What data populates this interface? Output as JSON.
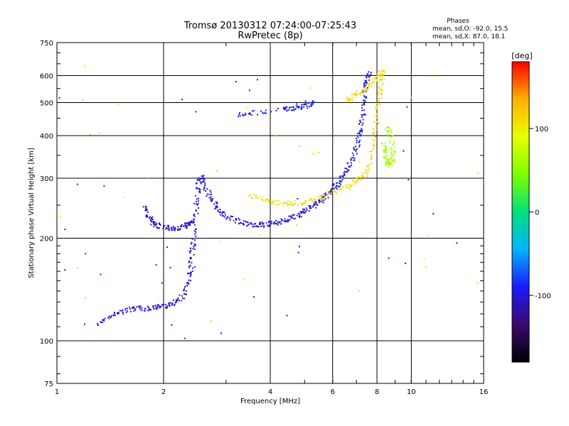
{
  "header": {
    "title_line1": "Tromsø 20130312 07:24:00-07:25:43",
    "title_line2": "RwPretec (8p)"
  },
  "stats": {
    "heading": "Phases",
    "line_o": "mean, sd,O: -92.0, 15.5",
    "line_x": "mean, sd,X:  87.0, 18.1"
  },
  "chart_data": {
    "type": "scatter",
    "xlabel": "Frequency [MHz]",
    "ylabel": "Stationary phase Virtual Height [km]",
    "x_scale": "log",
    "y_scale": "log",
    "xlim": [
      1,
      16
    ],
    "ylim": [
      75,
      750
    ],
    "x_ticks": [
      1,
      2,
      4,
      6,
      8,
      10,
      16
    ],
    "y_ticks": [
      75,
      100,
      200,
      300,
      400,
      500,
      600,
      750
    ],
    "x_grid": [
      2,
      4,
      6,
      8,
      10
    ],
    "y_grid": [
      100,
      200,
      300,
      400,
      500,
      600
    ],
    "grid": true,
    "colorbar": {
      "label": "[deg]",
      "range": [
        -180,
        180
      ],
      "ticks": [
        100,
        0,
        -100
      ],
      "colors": [
        "#000000",
        "#3a0a6e",
        "#1a1aff",
        "#00b4ff",
        "#00e07a",
        "#7cff00",
        "#e8ff00",
        "#ffb000",
        "#ff0000"
      ]
    },
    "series": [
      {
        "label_phase": -100,
        "trace": [
          [
            1.3,
            112
          ],
          [
            1.4,
            118
          ],
          [
            1.5,
            122
          ],
          [
            1.6,
            124
          ],
          [
            1.7,
            125
          ],
          [
            1.8,
            125
          ],
          [
            1.9,
            126
          ],
          [
            2.0,
            127
          ],
          [
            2.1,
            129
          ],
          [
            2.2,
            132
          ],
          [
            2.3,
            140
          ],
          [
            2.35,
            152
          ],
          [
            2.38,
            168
          ],
          [
            2.4,
            185
          ],
          [
            2.42,
            200
          ],
          [
            2.45,
            230
          ],
          [
            2.48,
            265
          ],
          [
            2.5,
            290
          ],
          [
            2.55,
            305
          ],
          [
            2.6,
            285
          ],
          [
            2.7,
            265
          ],
          [
            2.8,
            250
          ],
          [
            2.9,
            240
          ],
          [
            3.0,
            232
          ],
          [
            3.2,
            226
          ],
          [
            3.4,
            222
          ],
          [
            3.6,
            220
          ],
          [
            3.8,
            220
          ],
          [
            4.0,
            222
          ],
          [
            4.2,
            224
          ],
          [
            4.4,
            227
          ],
          [
            4.6,
            230
          ],
          [
            4.8,
            235
          ],
          [
            5.0,
            242
          ],
          [
            5.2,
            248
          ],
          [
            5.4,
            254
          ],
          [
            5.6,
            262
          ],
          [
            5.8,
            270
          ],
          [
            6.0,
            280
          ],
          [
            6.2,
            292
          ],
          [
            6.4,
            306
          ],
          [
            6.6,
            322
          ],
          [
            6.8,
            345
          ],
          [
            7.0,
            375
          ],
          [
            7.1,
            400
          ],
          [
            7.2,
            430
          ],
          [
            7.3,
            470
          ],
          [
            7.35,
            520
          ],
          [
            7.4,
            560
          ],
          [
            7.5,
            590
          ],
          [
            7.6,
            610
          ]
        ]
      },
      {
        "label_phase": -110,
        "trace": [
          [
            1.75,
            250
          ],
          [
            1.8,
            235
          ],
          [
            1.85,
            225
          ],
          [
            1.9,
            220
          ],
          [
            2.0,
            216
          ],
          [
            2.1,
            215
          ],
          [
            2.2,
            216
          ],
          [
            2.3,
            218
          ],
          [
            2.35,
            222
          ],
          [
            2.4,
            225
          ]
        ]
      },
      {
        "label_phase": 110,
        "trace": [
          [
            3.5,
            270
          ],
          [
            3.8,
            262
          ],
          [
            4.0,
            258
          ],
          [
            4.3,
            255
          ],
          [
            4.6,
            254
          ],
          [
            5.0,
            256
          ],
          [
            5.4,
            262
          ],
          [
            5.8,
            270
          ],
          [
            6.2,
            280
          ],
          [
            6.6,
            288
          ],
          [
            7.0,
            295
          ],
          [
            7.3,
            305
          ],
          [
            7.6,
            330
          ],
          [
            7.8,
            380
          ],
          [
            7.9,
            430
          ],
          [
            8.0,
            480
          ],
          [
            8.1,
            530
          ],
          [
            8.2,
            580
          ],
          [
            8.3,
            620
          ],
          [
            8.0,
            600
          ],
          [
            7.7,
            575
          ],
          [
            7.4,
            555
          ],
          [
            7.1,
            535
          ],
          [
            6.8,
            520
          ],
          [
            6.5,
            510
          ]
        ]
      },
      {
        "label_phase": -95,
        "trace": [
          [
            4.3,
            480
          ],
          [
            4.6,
            482
          ],
          [
            4.9,
            488
          ],
          [
            5.1,
            495
          ],
          [
            5.3,
            505
          ],
          [
            4.0,
            470
          ],
          [
            3.5,
            470
          ],
          [
            3.2,
            460
          ]
        ]
      },
      {
        "label_phase": 60,
        "trace": [
          [
            8.3,
            380
          ],
          [
            8.4,
            360
          ],
          [
            8.5,
            340
          ],
          [
            8.6,
            330
          ],
          [
            8.8,
            340
          ],
          [
            8.9,
            360
          ],
          [
            8.7,
            400
          ],
          [
            8.5,
            430
          ]
        ]
      }
    ]
  }
}
